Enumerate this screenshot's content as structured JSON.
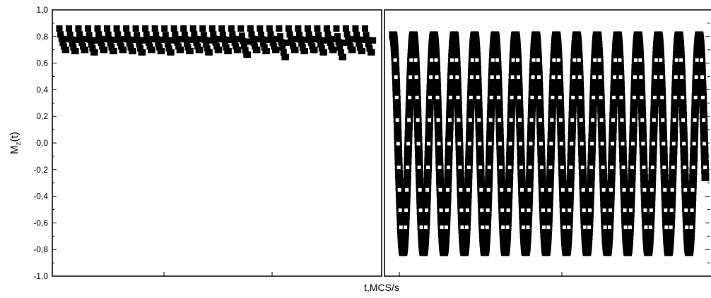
{
  "figure": {
    "ylabel_main": "M",
    "ylabel_sub": "z",
    "ylabel_tail": "(t)",
    "xlabel": "t,MCS/s"
  },
  "colors": {
    "ink": "#000000",
    "marker_highlight": "#ffffff",
    "background": "#ffffff"
  },
  "chart_data": [
    {
      "type": "line",
      "panel": "left",
      "xlabel": "t,MCS/s",
      "ylabel": "Mz(t)",
      "ylim": [
        -1.0,
        1.0
      ],
      "yticks": [
        "-1,0",
        "-0,8",
        "-0,6",
        "-0,4",
        "-0,2",
        "0,0",
        "0,2",
        "0,4",
        "0,6",
        "0,8",
        "1,0"
      ],
      "grid": false,
      "marker": "filled-square",
      "series": [
        {
          "cycles": 33,
          "max": 0.86,
          "min": [
            0.68,
            0.67,
            0.68,
            0.66,
            0.68,
            0.67,
            0.68,
            0.67,
            0.66,
            0.68,
            0.67,
            0.66,
            0.68,
            0.67,
            0.68,
            0.66,
            0.68,
            0.67,
            0.68,
            0.64,
            0.68,
            0.67,
            0.68,
            0.62,
            0.68,
            0.67,
            0.68,
            0.66,
            0.68,
            0.62,
            0.68,
            0.67,
            0.66
          ]
        }
      ]
    },
    {
      "type": "line",
      "panel": "right",
      "xlabel": "t,MCS/s",
      "ylabel": "Mz(t)",
      "ylim": [
        -1.0,
        1.0
      ],
      "grid": false,
      "marker": "square",
      "series": [
        {
          "cycles": 15.3,
          "max": 0.81,
          "min": -0.82
        }
      ]
    }
  ]
}
